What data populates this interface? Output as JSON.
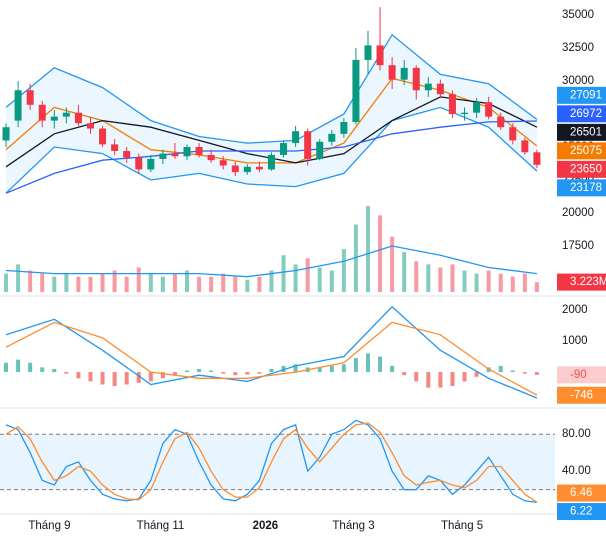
{
  "chart_data": [
    {
      "type": "candlestick",
      "xlim": [
        -0.5,
        45.5
      ],
      "ylim": [
        16060,
        36140
      ],
      "yticks": [
        17500,
        20000,
        22500,
        25000,
        27500,
        30000,
        32500,
        35000
      ],
      "up_color": "#089981",
      "down_color": "#f23645",
      "open": [
        25500,
        27000,
        29300,
        28200,
        27000,
        27300,
        27600,
        26800,
        26400,
        25200,
        24700,
        24200,
        23300,
        24100,
        24500,
        24300,
        25000,
        24400,
        24000,
        23600,
        23100,
        23500,
        23300,
        24400,
        25300,
        26200,
        24100,
        25400,
        26000,
        26900,
        31600,
        32700,
        31200,
        30100,
        31000,
        29300,
        29800,
        29000,
        27500,
        27600,
        28400,
        27300,
        26500,
        25500,
        24600
      ],
      "high": [
        26800,
        30000,
        29800,
        28500,
        27800,
        28000,
        28200,
        27300,
        26600,
        25600,
        25000,
        24500,
        24400,
        24800,
        25300,
        25200,
        25300,
        24800,
        24300,
        23900,
        23700,
        23900,
        24600,
        25500,
        26600,
        26400,
        25600,
        26300,
        27200,
        32500,
        33800,
        35600,
        31800,
        31600,
        31200,
        30300,
        30100,
        29300,
        28000,
        28700,
        28800,
        27600,
        26800,
        25700,
        24800
      ],
      "low": [
        25000,
        26500,
        27800,
        26500,
        26400,
        26800,
        26600,
        26000,
        25000,
        24400,
        23800,
        23000,
        23100,
        23700,
        24100,
        24000,
        24200,
        23800,
        23300,
        22800,
        22900,
        23100,
        23200,
        24200,
        25000,
        23600,
        24000,
        25100,
        25700,
        26700,
        30500,
        30800,
        29400,
        29700,
        28600,
        28800,
        28700,
        27200,
        27000,
        27200,
        27100,
        26300,
        25200,
        24400,
        23400
      ],
      "close": [
        26500,
        29300,
        28200,
        27000,
        27300,
        27600,
        26800,
        26400,
        25200,
        24700,
        24200,
        23300,
        24100,
        24500,
        24300,
        25000,
        24400,
        24000,
        23600,
        23100,
        23500,
        23300,
        24400,
        25300,
        26200,
        24100,
        25400,
        26000,
        26900,
        31600,
        32700,
        31200,
        30100,
        31000,
        29300,
        29800,
        29000,
        27500,
        27600,
        28400,
        27300,
        26500,
        25500,
        24600,
        23650
      ],
      "band_fill": "rgba(33,150,243,0.09)",
      "series": [
        {
          "role": "upper",
          "color": "#2196f3",
          "x": [
            0,
            4,
            8,
            12,
            16,
            20,
            24,
            28,
            32,
            36,
            40,
            44
          ],
          "values": [
            28000,
            31000,
            29500,
            27000,
            25800,
            25300,
            25500,
            27500,
            33500,
            30500,
            29800,
            27091
          ]
        },
        {
          "role": "lower",
          "color": "#2196f3",
          "x": [
            0,
            4,
            8,
            12,
            16,
            20,
            24,
            28,
            32,
            36,
            40,
            44
          ],
          "values": [
            21500,
            25000,
            24500,
            22500,
            23000,
            22200,
            22000,
            23000,
            27000,
            28000,
            26500,
            23178
          ]
        },
        {
          "color": "#f57c00",
          "x": [
            0,
            4,
            8,
            12,
            16,
            20,
            24,
            28,
            32,
            36,
            40,
            44
          ],
          "values": [
            24800,
            28000,
            27000,
            24800,
            24400,
            23800,
            23800,
            25300,
            30200,
            29300,
            28000,
            25075
          ]
        },
        {
          "color": "#131722",
          "x": [
            0,
            4,
            8,
            12,
            16,
            20,
            24,
            28,
            32,
            36,
            40,
            44
          ],
          "values": [
            23500,
            26000,
            27000,
            26500,
            25500,
            24500,
            23800,
            24500,
            27000,
            28800,
            28300,
            26501
          ]
        },
        {
          "color": "#2962ff",
          "x": [
            0,
            4,
            8,
            12,
            16,
            20,
            24,
            28,
            32,
            36,
            40,
            44
          ],
          "values": [
            21500,
            23000,
            24000,
            24300,
            24700,
            24700,
            24700,
            25000,
            26000,
            26500,
            26900,
            26972
          ]
        }
      ]
    },
    {
      "type": "bar",
      "ylim": [
        0,
        30
      ],
      "values": [
        6,
        9,
        7,
        6,
        5,
        6,
        5,
        5,
        6,
        7,
        5,
        8,
        6,
        5,
        6,
        7,
        5,
        5,
        6,
        5,
        4,
        5,
        7,
        12,
        9,
        11,
        8,
        7,
        14,
        22,
        28,
        25,
        18,
        13,
        10,
        9,
        8,
        9,
        7,
        6,
        7,
        6,
        5,
        6,
        3.223
      ],
      "value_labels": [
        null,
        null,
        null,
        null,
        null,
        null,
        null,
        null,
        null,
        null,
        null,
        null,
        null,
        null,
        null,
        null,
        null,
        null,
        null,
        null,
        null,
        null,
        null,
        null,
        null,
        null,
        null,
        null,
        null,
        null,
        null,
        null,
        null,
        null,
        null,
        null,
        null,
        null,
        null,
        null,
        null,
        null,
        null,
        null,
        "3.223M"
      ],
      "label_color": "#f23645",
      "series": [
        {
          "color": "#2196f3",
          "x": [
            0,
            4,
            8,
            12,
            16,
            20,
            24,
            28,
            32,
            36,
            40,
            44
          ],
          "values": [
            7,
            6,
            6,
            6,
            6,
            5,
            7,
            10,
            15,
            12,
            8,
            6
          ]
        }
      ]
    },
    {
      "type": "macd",
      "ylim": [
        -1060,
        2320
      ],
      "yticks": [
        1000,
        2000
      ],
      "histogram": {
        "pos_color": "#26a69a",
        "neg_color": "#ef5350",
        "label_bg": "#fccbcd",
        "values": [
          300,
          400,
          300,
          150,
          100,
          -50,
          -200,
          -300,
          -400,
          -450,
          -400,
          -350,
          -300,
          -200,
          -100,
          50,
          100,
          50,
          -50,
          -100,
          -80,
          -50,
          100,
          200,
          250,
          150,
          150,
          200,
          250,
          450,
          600,
          500,
          200,
          -100,
          -300,
          -500,
          -500,
          -450,
          -300,
          -150,
          150,
          200,
          50,
          -50,
          -90
        ]
      },
      "series": [
        {
          "color": "#2196f3",
          "x": [
            0,
            4,
            8,
            12,
            16,
            20,
            24,
            28,
            32,
            36,
            40,
            44
          ],
          "values": [
            1200,
            1700,
            700,
            -400,
            -100,
            -300,
            200,
            500,
            2100,
            700,
            -200,
            -836
          ]
        },
        {
          "color": "#ff8c2f",
          "label": true,
          "x": [
            0,
            4,
            8,
            12,
            16,
            20,
            24,
            28,
            32,
            36,
            40,
            44
          ],
          "values": [
            800,
            1600,
            1100,
            0,
            -200,
            -200,
            0,
            300,
            1600,
            1200,
            100,
            -746
          ]
        }
      ]
    },
    {
      "type": "stochastic",
      "ylim": [
        -2,
        104
      ],
      "yticks": [
        {
          "value": 80,
          "label": "80.00"
        },
        {
          "value": 40,
          "label": "40.00"
        }
      ],
      "bands": [
        20,
        80
      ],
      "band_fill": "rgba(33,150,243,0.1)",
      "xticks": [
        {
          "value": 3.6,
          "label": "Tháng 9"
        },
        {
          "value": 12.8,
          "label": "Tháng 11"
        },
        {
          "value": 21.5,
          "label": "2026",
          "bold": true
        },
        {
          "value": 28.8,
          "label": "Tháng 3"
        },
        {
          "value": 37.8,
          "label": "Tháng 5"
        }
      ],
      "series": [
        {
          "color": "#2196f3",
          "values": [
            90,
            85,
            60,
            30,
            25,
            45,
            50,
            30,
            15,
            10,
            8,
            10,
            30,
            70,
            85,
            80,
            50,
            25,
            10,
            8,
            15,
            30,
            70,
            85,
            90,
            40,
            55,
            80,
            85,
            95,
            90,
            75,
            40,
            20,
            20,
            35,
            30,
            15,
            25,
            40,
            55,
            35,
            15,
            8,
            6.22
          ]
        },
        {
          "color": "#ff8c2f",
          "values": [
            80,
            88,
            75,
            50,
            30,
            35,
            45,
            40,
            25,
            15,
            10,
            9,
            20,
            50,
            75,
            82,
            65,
            40,
            20,
            12,
            12,
            22,
            50,
            75,
            85,
            65,
            50,
            65,
            80,
            90,
            92,
            82,
            60,
            35,
            25,
            28,
            30,
            25,
            22,
            30,
            45,
            45,
            30,
            15,
            6.46
          ]
        }
      ]
    }
  ]
}
